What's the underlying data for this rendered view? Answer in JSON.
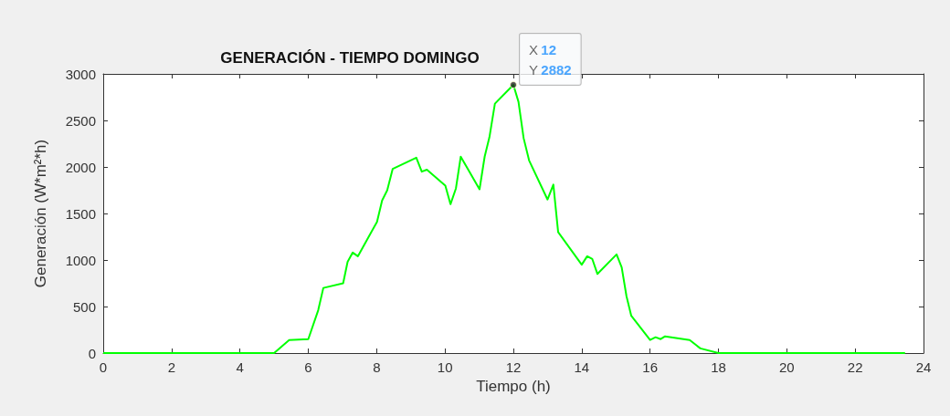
{
  "chart_data": {
    "type": "line",
    "title": "GENERACIÓN - TIEMPO DOMINGO",
    "xlabel": "Tiempo (h)",
    "ylabel": "Generación (W*m²*h)",
    "x": [
      0,
      5,
      5.44,
      6.0,
      6.29,
      6.44,
      7.02,
      7.15,
      7.3,
      7.45,
      8.01,
      8.16,
      8.31,
      8.47,
      9.16,
      9.32,
      9.47,
      10.01,
      10.16,
      10.32,
      10.46,
      11.01,
      11.16,
      11.3,
      11.46,
      12,
      12.15,
      12.3,
      12.46,
      13.0,
      13.17,
      13.31,
      14.0,
      14.16,
      14.31,
      14.46,
      15.02,
      15.17,
      15.31,
      15.45,
      16.0,
      16.16,
      16.31,
      16.44,
      17.16,
      17.47,
      18.0,
      23.46
    ],
    "series": [
      {
        "color": "#00ff00",
        "values": [
          0,
          0,
          140,
          150,
          460,
          700,
          750,
          980,
          1080,
          1040,
          1410,
          1640,
          1750,
          1980,
          2100,
          1950,
          1970,
          1800,
          1600,
          1770,
          2110,
          1760,
          2110,
          2320,
          2680,
          2882,
          2700,
          2310,
          2070,
          1650,
          1810,
          1300,
          950,
          1040,
          1010,
          850,
          1060,
          920,
          610,
          400,
          140,
          170,
          150,
          180,
          140,
          50,
          0,
          0
        ]
      }
    ],
    "xlim": [
      0,
      24
    ],
    "xticks": [
      0,
      2,
      4,
      6,
      8,
      10,
      12,
      14,
      16,
      18,
      20,
      22,
      24
    ],
    "ylim": [
      0,
      3000
    ],
    "yticks": [
      0,
      500,
      1000,
      1500,
      2000,
      2500,
      3000
    ],
    "grid": false,
    "marker": "none",
    "line_style": "solid",
    "annotations": [
      {
        "text": "X 12\nY 2882",
        "x": 12,
        "y": 2882
      }
    ]
  }
}
